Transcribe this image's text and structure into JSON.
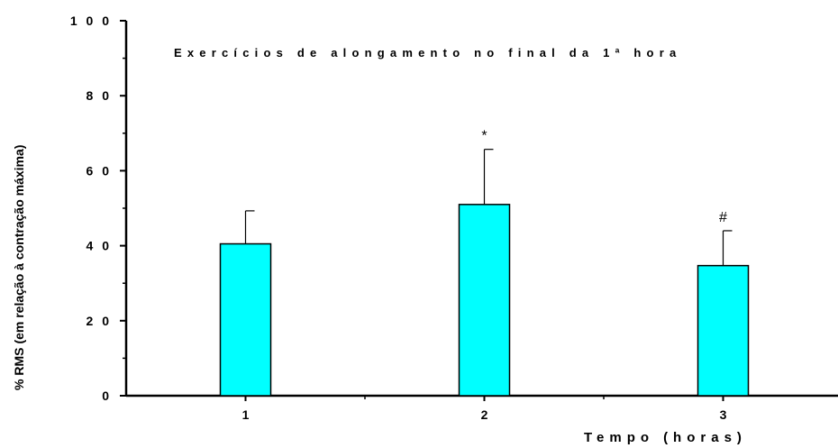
{
  "chart_data": {
    "type": "bar",
    "title": "Exercícios de alongamento no final da 1ª hora",
    "categories": [
      "1",
      "2",
      "3"
    ],
    "values": [
      40.5,
      51.0,
      34.7
    ],
    "errors": [
      8.8,
      14.7,
      9.3
    ],
    "annotations": [
      "",
      "*",
      "#"
    ],
    "ylim": [
      0,
      100
    ],
    "yticks": [
      "0",
      "20",
      "40",
      "60",
      "80",
      "100"
    ],
    "ytick_values": [
      0,
      20,
      40,
      60,
      80,
      100
    ],
    "xlabel_bold": "Tempo",
    "xlabel_rest": "(horas)",
    "ylabel_bold": "% RMS",
    "ylabel_rest": "(em relação à contração máxima)",
    "bar_color": "#00ffff",
    "edge_color": "#000000"
  }
}
